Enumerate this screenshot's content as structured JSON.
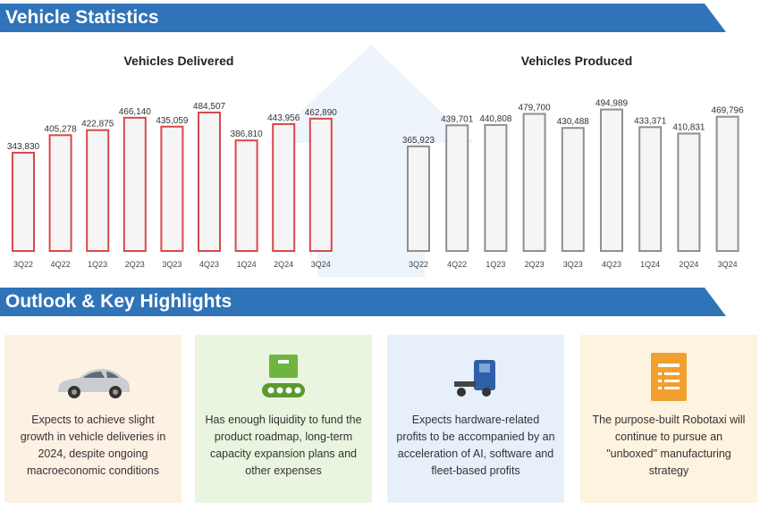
{
  "banners": {
    "stats": "Vehicle Statistics",
    "outlook": "Outlook & Key Highlights"
  },
  "colors": {
    "banner": "#2f73b8",
    "delivered_bar": "#d8484a",
    "produced_bar": "#8f8f8f",
    "bar_fill": "#f5f5f5"
  },
  "chart_data": [
    {
      "type": "bar",
      "title": "Vehicles Delivered",
      "categories": [
        "3Q22",
        "4Q22",
        "1Q23",
        "2Q23",
        "3Q23",
        "4Q23",
        "1Q24",
        "2Q24",
        "3Q24"
      ],
      "values": [
        343830,
        405278,
        422875,
        466140,
        435059,
        484507,
        386810,
        443956,
        462890
      ],
      "value_labels": [
        "343,830",
        "405,278",
        "422,875",
        "466,140",
        "435,059",
        "484,507",
        "386,810",
        "443,956",
        "462,890"
      ],
      "ylim": [
        0,
        500000
      ],
      "grid": false,
      "bar_color": "#d8484a"
    },
    {
      "type": "bar",
      "title": "Vehicles Produced",
      "categories": [
        "3Q22",
        "4Q22",
        "1Q23",
        "2Q23",
        "3Q23",
        "4Q23",
        "1Q24",
        "2Q24",
        "3Q24"
      ],
      "values": [
        365923,
        439701,
        440808,
        479700,
        430488,
        494989,
        433371,
        410831,
        469796
      ],
      "value_labels": [
        "365,923",
        "439,701",
        "440,808",
        "479,700",
        "430,488",
        "494,989",
        "433,371",
        "410,831",
        "469,796"
      ],
      "ylim": [
        0,
        500000
      ],
      "grid": false,
      "bar_color": "#8f8f8f"
    }
  ],
  "cards": [
    {
      "icon": "car-icon",
      "text": "Expects to achieve slight growth in vehicle deliveries in 2024, despite ongoing macroeconomic conditions"
    },
    {
      "icon": "conveyor-belt-icon",
      "text": "Has enough liquidity to fund the product roadmap, long-term capacity expansion plans and other expenses"
    },
    {
      "icon": "semi-truck-icon",
      "text": "Expects hardware-related profits to be accompanied by an acceleration of AI, software and fleet-based profits"
    },
    {
      "icon": "document-icon",
      "text": "The purpose-built Robotaxi will continue to pursue an \"unboxed\" manufacturing strategy"
    }
  ]
}
